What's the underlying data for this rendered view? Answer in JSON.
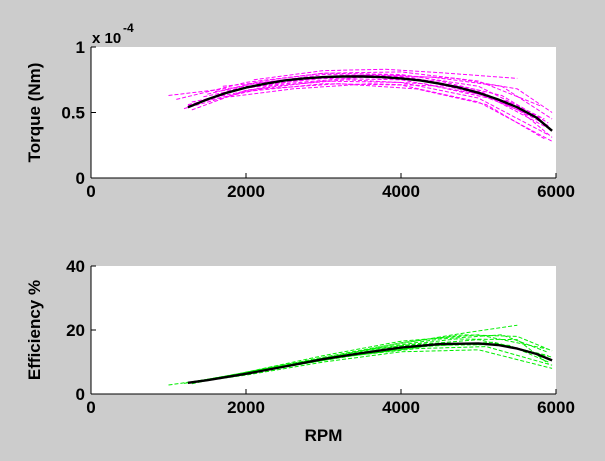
{
  "figure": {
    "background": "#cccccc"
  },
  "chart_data": [
    {
      "type": "line",
      "ylabel": "Torque (Nm)",
      "y_multiplier": "x 10",
      "y_multiplier_exponent": "-4",
      "xlim": [
        0,
        6000
      ],
      "ylim": [
        0,
        1
      ],
      "x_ticks": [
        "0",
        "2000",
        "4000",
        "6000"
      ],
      "y_ticks": [
        "0",
        "0.5",
        "1"
      ],
      "grid": false,
      "scatter_color": "#ff00ff",
      "mean_color": "#000000",
      "series": [
        {
          "style": "mean",
          "x": [
            1250,
            1500,
            1750,
            2000,
            2250,
            2500,
            2750,
            3000,
            3250,
            3500,
            3750,
            4000,
            4250,
            4500,
            4750,
            5000,
            5250,
            5500,
            5750,
            5950
          ],
          "y": [
            0.54,
            0.6,
            0.65,
            0.69,
            0.72,
            0.745,
            0.76,
            0.77,
            0.775,
            0.775,
            0.77,
            0.76,
            0.745,
            0.72,
            0.69,
            0.65,
            0.6,
            0.54,
            0.46,
            0.36
          ]
        },
        {
          "style": "sample",
          "x": [
            1250,
            2000,
            3000,
            4000,
            5000,
            5900
          ],
          "y": [
            0.55,
            0.71,
            0.79,
            0.78,
            0.67,
            0.4
          ]
        },
        {
          "style": "sample",
          "x": [
            1300,
            2000,
            3000,
            4000,
            5000,
            5900
          ],
          "y": [
            0.52,
            0.67,
            0.74,
            0.73,
            0.61,
            0.33
          ]
        },
        {
          "style": "sample",
          "x": [
            1100,
            2000,
            3000,
            4000,
            5000,
            5850
          ],
          "y": [
            0.6,
            0.73,
            0.8,
            0.79,
            0.7,
            0.45
          ]
        },
        {
          "style": "sample",
          "x": [
            1400,
            2000,
            3000,
            4000,
            5000,
            5900
          ],
          "y": [
            0.58,
            0.69,
            0.77,
            0.77,
            0.66,
            0.38
          ]
        },
        {
          "style": "sample",
          "x": [
            1200,
            2000,
            3000,
            4000,
            5000,
            5950
          ],
          "y": [
            0.53,
            0.66,
            0.72,
            0.71,
            0.58,
            0.28
          ]
        },
        {
          "style": "sample",
          "x": [
            1500,
            2200,
            3000,
            4000,
            5000,
            5800
          ],
          "y": [
            0.64,
            0.74,
            0.8,
            0.81,
            0.74,
            0.55
          ]
        },
        {
          "style": "sample",
          "x": [
            1000,
            2000,
            3000,
            4000,
            5000,
            5600
          ],
          "y": [
            0.63,
            0.7,
            0.76,
            0.75,
            0.64,
            0.5
          ]
        },
        {
          "style": "sample",
          "x": [
            1600,
            2500,
            3500,
            4500,
            5300,
            5900
          ],
          "y": [
            0.66,
            0.72,
            0.77,
            0.74,
            0.63,
            0.42
          ]
        },
        {
          "style": "sample",
          "x": [
            1800,
            2600,
            3600,
            4600,
            5400,
            5950
          ],
          "y": [
            0.62,
            0.68,
            0.72,
            0.7,
            0.58,
            0.31
          ]
        },
        {
          "style": "sample",
          "x": [
            2100,
            3000,
            3800,
            4600,
            5500
          ],
          "y": [
            0.75,
            0.82,
            0.83,
            0.8,
            0.76
          ]
        },
        {
          "style": "sample",
          "x": [
            1300,
            2300,
            3300,
            4300,
            5200,
            5700
          ],
          "y": [
            0.58,
            0.7,
            0.75,
            0.72,
            0.6,
            0.47
          ]
        },
        {
          "style": "sample",
          "x": [
            1700,
            2700,
            3700,
            4700,
            5500,
            5950
          ],
          "y": [
            0.7,
            0.76,
            0.79,
            0.76,
            0.68,
            0.5
          ]
        },
        {
          "style": "sample",
          "x": [
            1250,
            2200,
            3200,
            4200,
            5100,
            5850
          ],
          "y": [
            0.56,
            0.68,
            0.72,
            0.68,
            0.56,
            0.3
          ]
        },
        {
          "style": "sample",
          "x": [
            1450,
            2400,
            3400,
            4400,
            5300,
            5950
          ],
          "y": [
            0.62,
            0.74,
            0.78,
            0.77,
            0.7,
            0.45
          ]
        }
      ]
    },
    {
      "type": "line",
      "ylabel": "Efficiency %",
      "xlabel": "RPM",
      "xlim": [
        0,
        6000
      ],
      "ylim": [
        0,
        40
      ],
      "x_ticks": [
        "0",
        "2000",
        "4000",
        "6000"
      ],
      "y_ticks": [
        "0",
        "20",
        "40"
      ],
      "grid": false,
      "scatter_color": "#00ee00",
      "mean_color": "#000000",
      "series": [
        {
          "style": "mean",
          "x": [
            1250,
            1500,
            2000,
            2500,
            3000,
            3500,
            4000,
            4500,
            5000,
            5250,
            5500,
            5750,
            5950
          ],
          "y": [
            3.5,
            4.3,
            6.3,
            8.6,
            10.9,
            12.8,
            14.5,
            15.6,
            15.8,
            15.3,
            14.2,
            12.5,
            10.5
          ]
        },
        {
          "style": "sample",
          "x": [
            1000,
            2000,
            3000,
            4000,
            5000,
            5900
          ],
          "y": [
            2.8,
            6.2,
            11,
            15,
            17,
            12
          ]
        },
        {
          "style": "sample",
          "x": [
            1300,
            2000,
            3000,
            4000,
            5000,
            5900
          ],
          "y": [
            3.2,
            6.8,
            12,
            16.5,
            18.5,
            14
          ]
        },
        {
          "style": "sample",
          "x": [
            1250,
            2000,
            3000,
            4000,
            5000,
            5950
          ],
          "y": [
            3.4,
            5.9,
            10,
            13.2,
            13.8,
            8
          ]
        },
        {
          "style": "sample",
          "x": [
            1500,
            2500,
            3500,
            4500,
            5300,
            5900
          ],
          "y": [
            4.6,
            9,
            13.5,
            17.2,
            18.5,
            13
          ]
        },
        {
          "style": "sample",
          "x": [
            1200,
            2200,
            3200,
            4200,
            5100,
            5950
          ],
          "y": [
            3.3,
            7.5,
            11.5,
            14.2,
            14.8,
            9
          ]
        },
        {
          "style": "sample",
          "x": [
            1800,
            2800,
            3800,
            4800,
            5500
          ],
          "y": [
            5.6,
            10.2,
            15,
            19,
            21.5
          ]
        },
        {
          "style": "sample",
          "x": [
            1400,
            2400,
            3400,
            4400,
            5300,
            5800
          ],
          "y": [
            4.2,
            8.2,
            12,
            15.2,
            15.5,
            12.2
          ]
        },
        {
          "style": "sample",
          "x": [
            2000,
            3000,
            4000,
            4800,
            5500,
            5950
          ],
          "y": [
            6.8,
            11.5,
            16,
            18.5,
            18,
            13.5
          ]
        },
        {
          "style": "sample",
          "x": [
            1600,
            2600,
            3600,
            4600,
            5400,
            5900
          ],
          "y": [
            5,
            9.2,
            13,
            15.8,
            15.2,
            10
          ]
        },
        {
          "style": "sample",
          "x": [
            1300,
            2300,
            3300,
            4300,
            5200,
            5950
          ],
          "y": [
            3.8,
            7.5,
            11.8,
            14.8,
            16.2,
            11.5
          ]
        },
        {
          "style": "sample",
          "x": [
            1700,
            2700,
            3700,
            4700,
            5500,
            5900
          ],
          "y": [
            5.4,
            9.8,
            14.2,
            17.2,
            17,
            9.5
          ]
        }
      ]
    }
  ]
}
